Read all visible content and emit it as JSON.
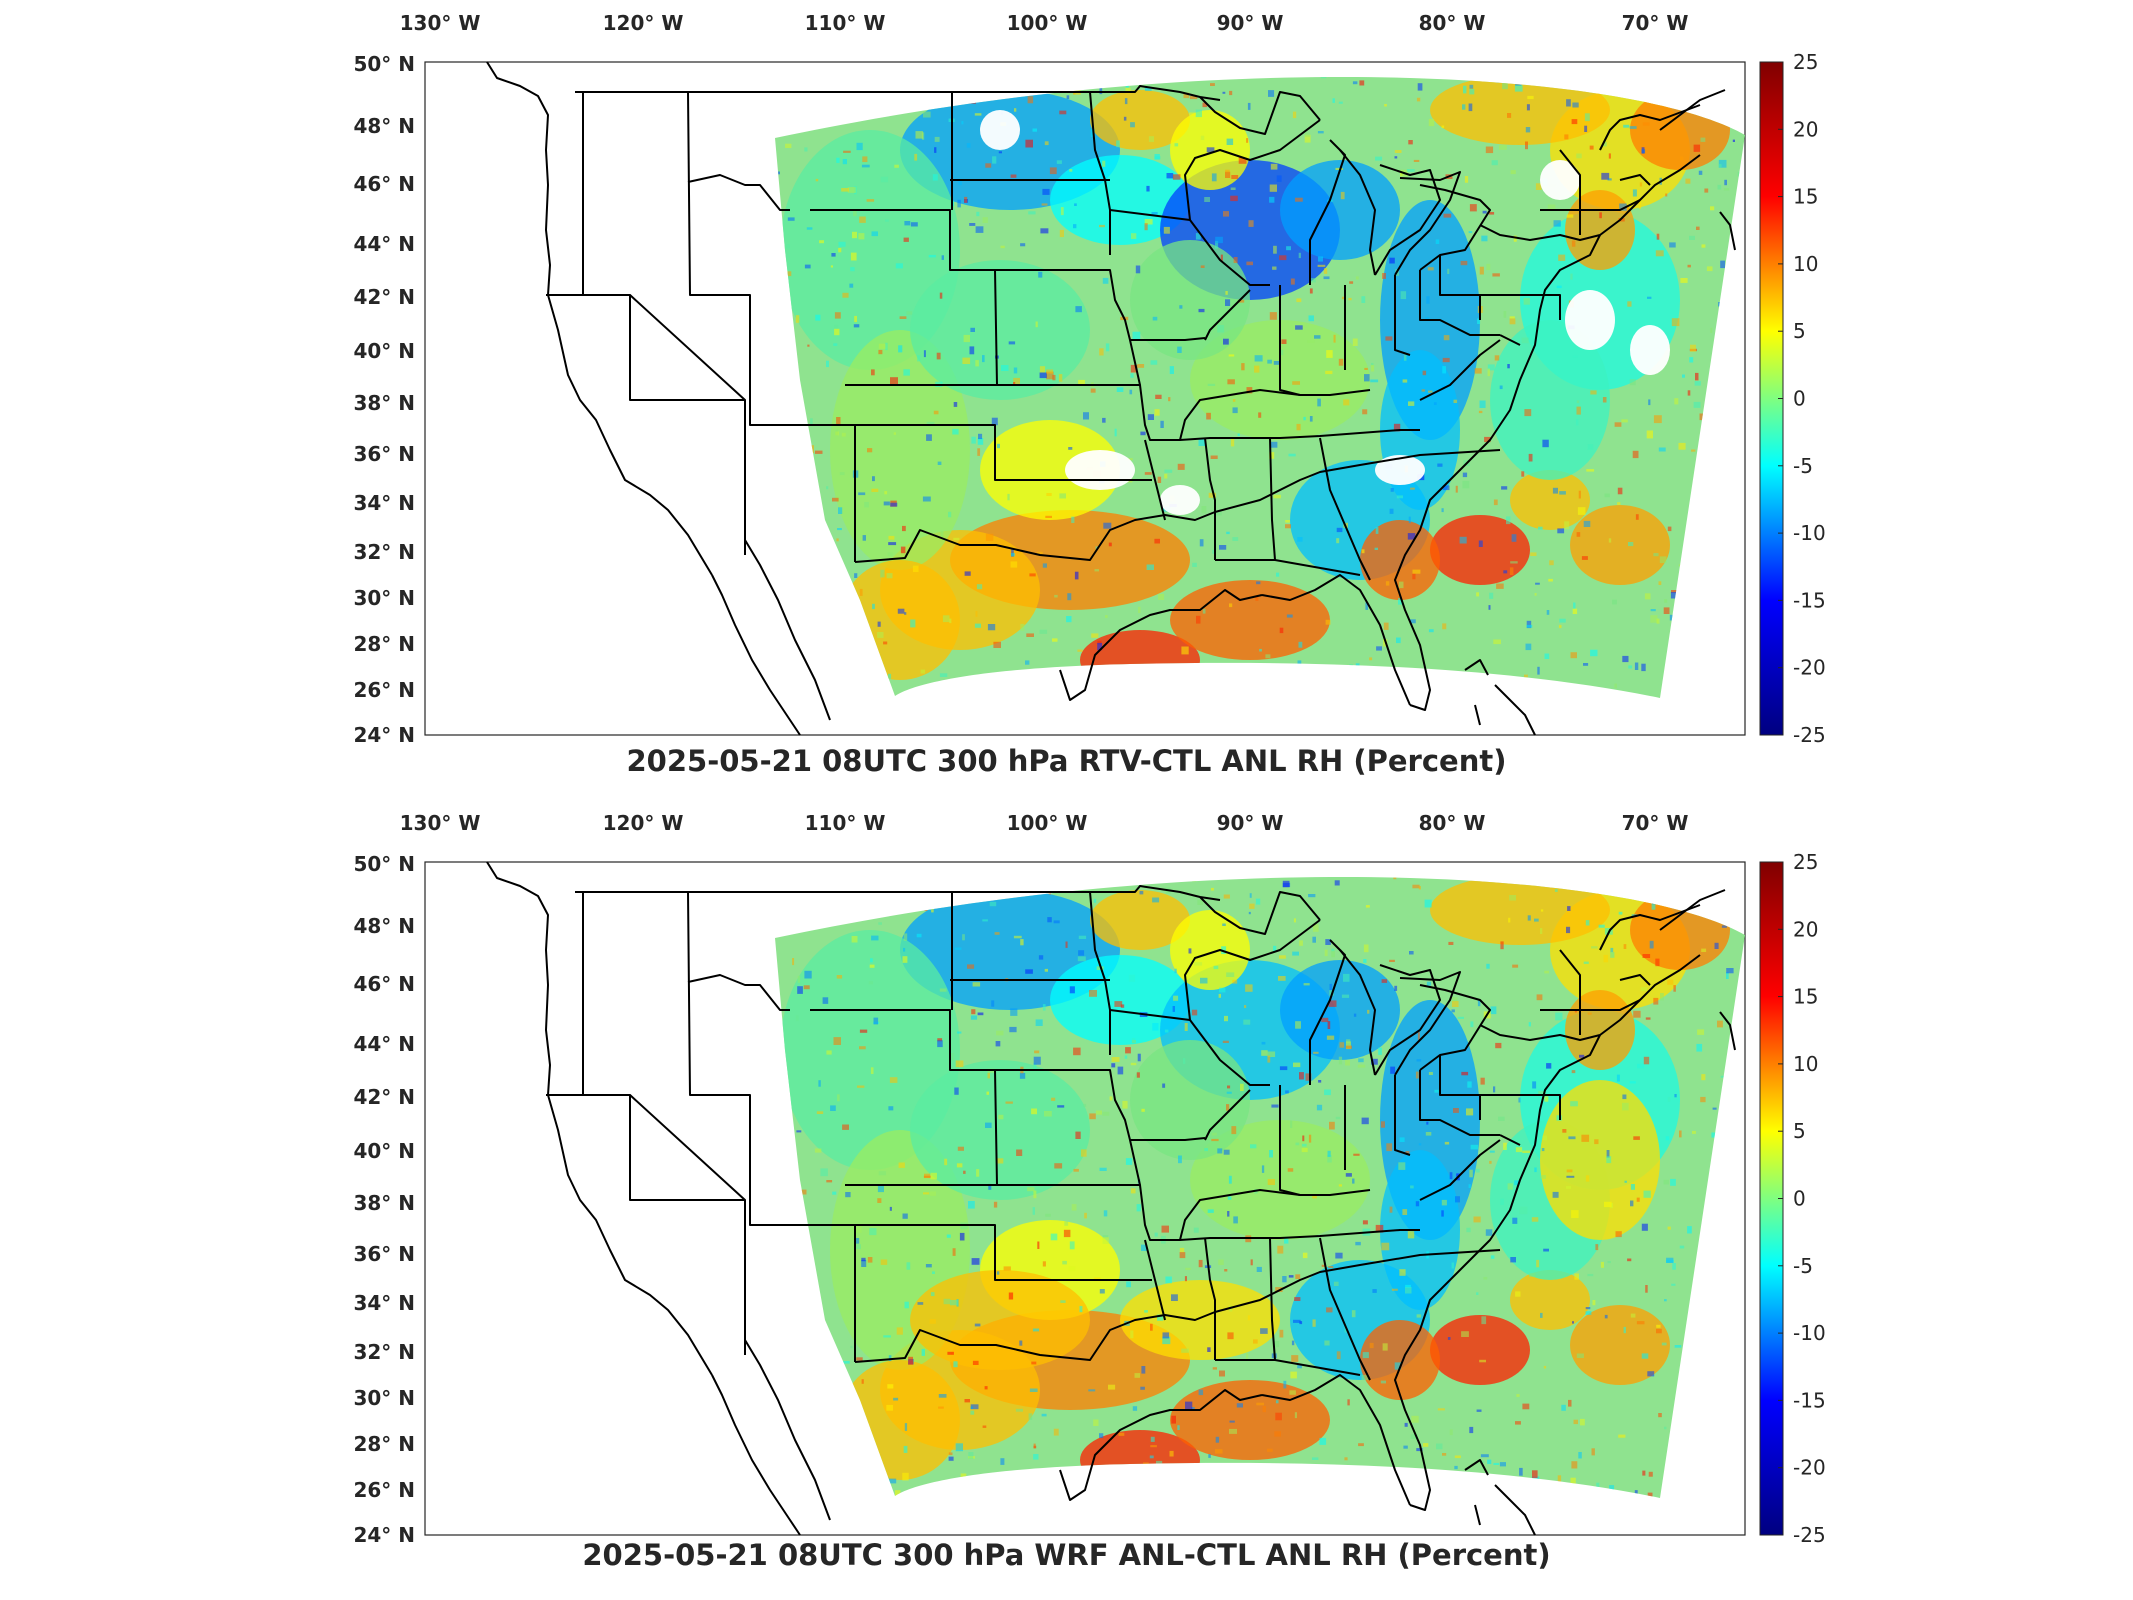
{
  "maps": [
    {
      "title": "2025-05-21 08UTC 300 hPa RTV-CTL ANL RH (Percent)",
      "variant": "rtv"
    },
    {
      "title": "2025-05-21 08UTC 300 hPa WRF ANL-CTL ANL RH (Percent)",
      "variant": "wrf"
    }
  ],
  "lon_labels": [
    "130",
    "120",
    "110",
    "100",
    "90",
    "80",
    "70"
  ],
  "lon_suffix": "W",
  "lat_labels": [
    "50",
    "48",
    "46",
    "44",
    "42",
    "40",
    "38",
    "36",
    "34",
    "32",
    "30",
    "28",
    "26",
    "24"
  ],
  "lat_suffix": "N",
  "colorbar": {
    "ticks": [
      "25",
      "20",
      "15",
      "10",
      "5",
      "0",
      "-5",
      "-10",
      "-15",
      "-20",
      "-25"
    ],
    "colors": [
      "#800000",
      "#ff0000",
      "#ffff00",
      "#00ffff",
      "#0000ff",
      "#000080"
    ]
  }
}
